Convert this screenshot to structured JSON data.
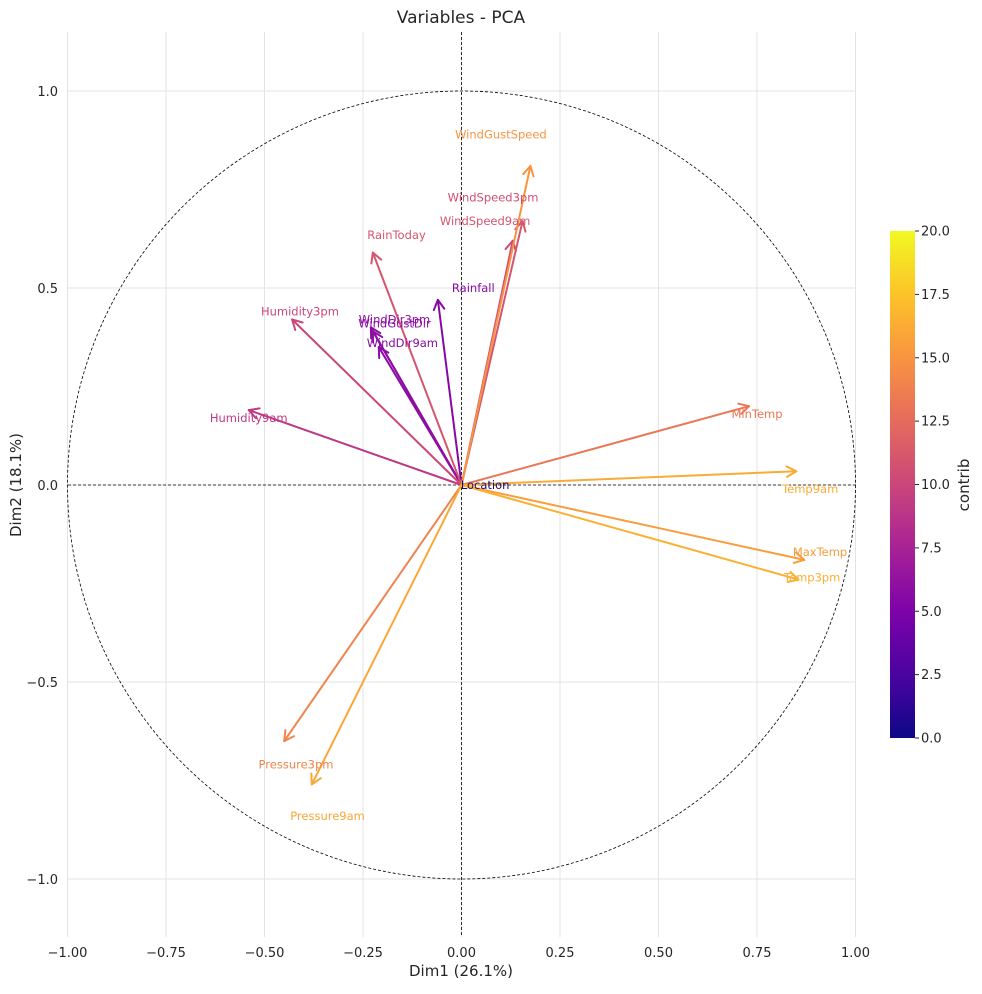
{
  "chart_data": {
    "type": "pca-correlation-circle",
    "title": "Variables - PCA",
    "xlabel": "Dim1 (26.1%)",
    "ylabel": "Dim2 (18.1%)",
    "xlim": [
      -1.0,
      1.0
    ],
    "ylim": [
      -1.15,
      1.15
    ],
    "xticks": [
      -1.0,
      -0.75,
      -0.5,
      -0.25,
      0.0,
      0.25,
      0.5,
      0.75,
      1.0
    ],
    "xtick_labels": [
      "−1.00",
      "−0.75",
      "−0.50",
      "−0.25",
      "0.00",
      "0.25",
      "0.50",
      "0.75",
      "1.00"
    ],
    "yticks": [
      -1.0,
      -0.5,
      0.0,
      0.5,
      1.0
    ],
    "ytick_labels": [
      "−1.0",
      "−0.5",
      "0.0",
      "0.5",
      "1.0"
    ],
    "grid": true,
    "unit_circle": true,
    "colorbar": {
      "label": "contrib",
      "min": 0.0,
      "max": 20.0,
      "ticks": [
        0.0,
        2.5,
        5.0,
        7.5,
        10.0,
        12.5,
        15.0,
        17.5,
        20.0
      ],
      "tick_labels": [
        "0.0",
        "2.5",
        "5.0",
        "7.5",
        "10.0",
        "12.5",
        "15.0",
        "17.5",
        "20.0"
      ],
      "colormap": "plasma"
    },
    "variables": [
      {
        "name": "Location",
        "x": 0.005,
        "y": 0.002,
        "contrib": 0.2,
        "label_pos": [
          0.06,
          0.0
        ]
      },
      {
        "name": "MinTemp",
        "x": 0.73,
        "y": 0.2,
        "contrib": 13.2,
        "label_pos": [
          0.75,
          0.18
        ]
      },
      {
        "name": "MaxTemp",
        "x": 0.87,
        "y": -0.19,
        "contrib": 15.5,
        "label_pos": [
          0.91,
          -0.17
        ]
      },
      {
        "name": "Rainfall",
        "x": -0.06,
        "y": 0.47,
        "contrib": 5.5,
        "label_pos": [
          0.03,
          0.5
        ]
      },
      {
        "name": "WindGustDir",
        "x": -0.23,
        "y": 0.4,
        "contrib": 5.8,
        "label_pos": [
          -0.17,
          0.41
        ]
      },
      {
        "name": "WindGustSpeed",
        "x": 0.175,
        "y": 0.81,
        "contrib": 15.0,
        "label_pos": [
          0.1,
          0.89
        ]
      },
      {
        "name": "WindDir9am",
        "x": -0.21,
        "y": 0.35,
        "contrib": 5.7,
        "label_pos": [
          -0.15,
          0.36
        ]
      },
      {
        "name": "WindDir3pm",
        "x": -0.225,
        "y": 0.39,
        "contrib": 6.0,
        "label_pos": [
          -0.17,
          0.42
        ]
      },
      {
        "name": "WindSpeed9am",
        "x": 0.155,
        "y": 0.67,
        "contrib": 11.0,
        "label_pos": [
          0.06,
          0.67
        ]
      },
      {
        "name": "WindSpeed3pm",
        "x": 0.13,
        "y": 0.62,
        "contrib": 10.5,
        "label_pos": [
          0.08,
          0.73
        ]
      },
      {
        "name": "Humidity9am",
        "x": -0.54,
        "y": 0.19,
        "contrib": 9.0,
        "label_pos": [
          -0.54,
          0.17
        ]
      },
      {
        "name": "Humidity3pm",
        "x": -0.43,
        "y": 0.42,
        "contrib": 10.0,
        "label_pos": [
          -0.41,
          0.44
        ]
      },
      {
        "name": "Pressure9am",
        "x": -0.38,
        "y": -0.76,
        "contrib": 16.0,
        "label_pos": [
          -0.34,
          -0.84
        ]
      },
      {
        "name": "Pressure3pm",
        "x": -0.45,
        "y": -0.65,
        "contrib": 14.0,
        "label_pos": [
          -0.42,
          -0.71
        ]
      },
      {
        "name": "Temp9am",
        "x": 0.85,
        "y": 0.035,
        "contrib": 16.2,
        "label_pos": [
          0.885,
          -0.01
        ]
      },
      {
        "name": "Temp3pm",
        "x": 0.855,
        "y": -0.24,
        "contrib": 16.5,
        "label_pos": [
          0.89,
          -0.235
        ]
      },
      {
        "name": "RainToday",
        "x": -0.225,
        "y": 0.59,
        "contrib": 11.0,
        "label_pos": [
          -0.165,
          0.635
        ]
      }
    ]
  }
}
